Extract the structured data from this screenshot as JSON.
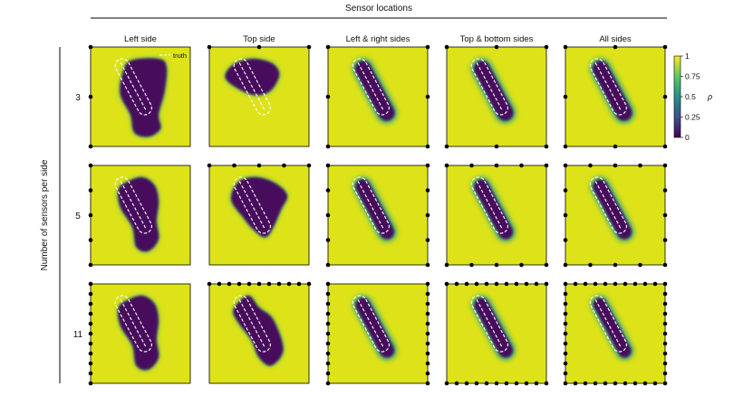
{
  "figure": {
    "super_title": "Sensor locations",
    "row_axis_label": "Number of sensors per side",
    "columns": [
      "Left side",
      "Top side",
      "Left & right sides",
      "Top & bottom sides",
      "All sides"
    ],
    "rows": [
      "3",
      "5",
      "11"
    ],
    "legend_label": "truth",
    "colorbar": {
      "label": "ρ",
      "ticks": [
        "1",
        "0.75",
        "0.5",
        "0.25",
        "0"
      ],
      "colormap": [
        "#fde725",
        "#5ec962",
        "#21918c",
        "#3b528b",
        "#440154"
      ]
    },
    "colors": {
      "background_field": "#dde318",
      "inclusion": "#46085c",
      "halo": "#2a9d8c",
      "truth_outline": "#ffffff",
      "sensor": "#000000"
    }
  }
}
